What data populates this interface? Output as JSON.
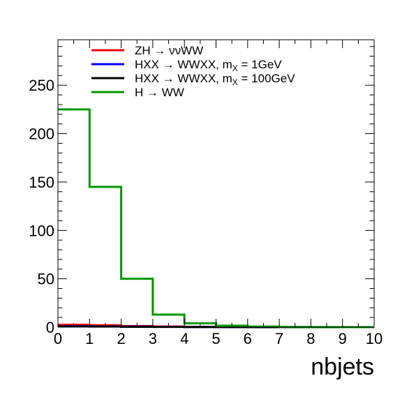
{
  "chart_data": {
    "type": "line",
    "title": "",
    "xlabel": "nbjets",
    "ylabel": "",
    "xlim": [
      0,
      10
    ],
    "ylim": [
      0,
      297
    ],
    "x_ticks": [
      "0",
      "1",
      "2",
      "3",
      "4",
      "5",
      "6",
      "7",
      "8",
      "9",
      "10"
    ],
    "y_ticks": [
      "0",
      "50",
      "100",
      "150",
      "200",
      "250"
    ],
    "y_tick_values": [
      0,
      50,
      100,
      150,
      200,
      250
    ],
    "grid": false,
    "legend_placement": "top-left",
    "bin_edges": [
      0,
      1,
      2,
      3,
      4,
      5,
      6,
      7,
      8,
      9,
      10
    ],
    "series": [
      {
        "legend_main": "ZH → ννWW",
        "legend_sub": "",
        "legend_tail": "",
        "color": "#ff0000",
        "values": [
          2.5,
          2.0,
          1.2,
          0.6,
          0.3,
          0.1,
          0.05,
          0.02,
          0.01,
          0
        ]
      },
      {
        "legend_main": "HXX → WWXX, m",
        "legend_sub": "X",
        "legend_tail": " = 1GeV",
        "color": "#0000ff",
        "values": [
          1.0,
          0.8,
          0.6,
          0.4,
          0.2,
          0.1,
          0.05,
          0.02,
          0,
          0
        ]
      },
      {
        "legend_main": "HXX → WWXX, m",
        "legend_sub": "X",
        "legend_tail": " = 100GeV",
        "color": "#000000",
        "values": [
          0.8,
          0.6,
          0.4,
          0.3,
          0.15,
          0.08,
          0.03,
          0.01,
          0,
          0
        ]
      },
      {
        "legend_main": "H → WW",
        "legend_sub": "",
        "legend_tail": "",
        "color": "#009900",
        "values": [
          225,
          145,
          50,
          13,
          4,
          1.5,
          0.6,
          0.2,
          0.05,
          0
        ]
      }
    ]
  }
}
